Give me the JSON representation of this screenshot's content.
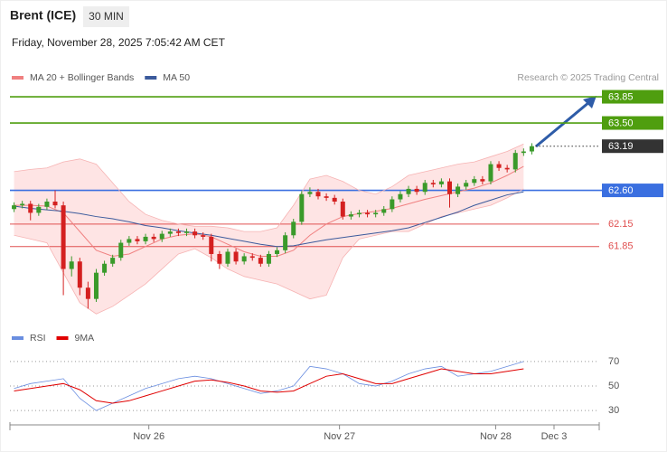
{
  "chart_data": {
    "type": "candlestick",
    "title": "Brent (ICE)",
    "timeframe": "30 MIN",
    "subtitle": "Friday, November 28, 2025 7:05:42 AM CET",
    "source": "Research © 2025 Trading Central",
    "xlim": [
      -0.5,
      71.2
    ],
    "xticks": [
      {
        "value": 16.4,
        "label": "Nov 26"
      },
      {
        "value": 39.6,
        "label": "Nov 27"
      },
      {
        "value": 58.6,
        "label": "Nov 28"
      },
      {
        "value": 65.7,
        "label": "Dec 3"
      }
    ],
    "ylim": [
      60.82,
      64.72
    ],
    "up_color": "#3a9a2a",
    "down_color": "#d42020",
    "open": [
      62.35,
      62.4,
      62.42,
      62.3,
      62.38,
      62.45,
      62.4,
      61.55,
      61.65,
      61.3,
      61.15,
      61.5,
      61.62,
      61.7,
      61.9,
      61.95,
      61.92,
      61.98,
      61.95,
      62.02,
      62.05,
      62.03,
      62.05,
      62.0,
      61.98,
      61.75,
      61.62,
      61.78,
      61.65,
      61.72,
      61.7,
      61.62,
      61.75,
      61.8,
      62.0,
      62.18,
      62.55,
      62.58,
      62.52,
      62.5,
      62.45,
      62.25,
      62.28,
      62.3,
      62.28,
      62.3,
      62.35,
      62.48,
      62.55,
      62.62,
      62.58,
      62.7,
      62.68,
      62.72,
      62.55,
      62.65,
      62.7,
      62.75,
      62.72,
      62.95,
      62.9,
      62.88,
      63.1,
      63.12
    ],
    "high": [
      62.44,
      62.46,
      62.46,
      62.42,
      62.49,
      62.6,
      62.45,
      61.72,
      61.7,
      61.38,
      61.55,
      61.66,
      61.74,
      61.94,
      61.99,
      61.99,
      62.02,
      62.02,
      62.06,
      62.09,
      62.09,
      62.09,
      62.09,
      62.04,
      62.02,
      61.79,
      61.82,
      61.82,
      61.76,
      61.76,
      61.74,
      61.79,
      61.84,
      62.04,
      62.22,
      62.59,
      62.64,
      62.62,
      62.56,
      62.54,
      62.49,
      62.32,
      62.34,
      62.34,
      62.34,
      62.39,
      62.52,
      62.59,
      62.66,
      62.66,
      62.74,
      62.74,
      62.76,
      62.76,
      62.69,
      62.74,
      62.79,
      62.79,
      62.99,
      62.99,
      62.94,
      63.14,
      63.16,
      63.23
    ],
    "low": [
      62.31,
      62.36,
      62.2,
      62.26,
      62.34,
      62.36,
      61.2,
      61.45,
      61.2,
      61.02,
      61.11,
      61.46,
      61.58,
      61.66,
      61.86,
      61.88,
      61.88,
      61.91,
      61.91,
      61.98,
      61.99,
      61.99,
      61.96,
      61.94,
      61.65,
      61.55,
      61.58,
      61.61,
      61.61,
      61.66,
      61.58,
      61.58,
      61.71,
      61.76,
      61.96,
      62.14,
      62.51,
      62.48,
      62.46,
      62.41,
      62.21,
      62.21,
      62.24,
      62.24,
      62.24,
      62.26,
      62.31,
      62.44,
      62.51,
      62.54,
      62.54,
      62.64,
      62.64,
      62.37,
      62.51,
      62.61,
      62.66,
      62.68,
      62.68,
      62.86,
      62.84,
      62.84,
      63.06,
      63.08
    ],
    "close": [
      62.4,
      62.42,
      62.3,
      62.38,
      62.45,
      62.4,
      61.55,
      61.65,
      61.3,
      61.15,
      61.5,
      61.62,
      61.7,
      61.9,
      61.95,
      61.92,
      61.98,
      61.95,
      62.02,
      62.05,
      62.03,
      62.05,
      62.0,
      61.98,
      61.75,
      61.62,
      61.78,
      61.65,
      61.72,
      61.7,
      61.62,
      61.75,
      61.8,
      62.0,
      62.18,
      62.55,
      62.58,
      62.52,
      62.5,
      62.45,
      62.25,
      62.28,
      62.3,
      62.28,
      62.3,
      62.35,
      62.48,
      62.55,
      62.62,
      62.58,
      62.7,
      62.68,
      62.72,
      62.55,
      62.65,
      62.7,
      62.75,
      62.72,
      62.95,
      62.9,
      62.88,
      63.1,
      63.12,
      63.19
    ],
    "indicators": {
      "x": [
        0,
        2,
        4,
        6,
        8,
        10,
        12,
        14,
        16,
        18,
        20,
        22,
        24,
        26,
        28,
        30,
        32,
        34,
        36,
        38,
        40,
        42,
        44,
        46,
        48,
        50,
        52,
        54,
        56,
        58,
        60,
        62
      ],
      "series": [
        {
          "name": "MA 20 + Bollinger Bands",
          "color": "#f08080",
          "band_color": "#fdd9d9",
          "values": [
            62.4,
            62.4,
            62.39,
            62.3,
            62.05,
            61.8,
            61.72,
            61.75,
            61.85,
            61.95,
            62.0,
            62.02,
            61.98,
            61.88,
            61.78,
            61.72,
            61.72,
            61.8,
            62.0,
            62.15,
            62.25,
            62.29,
            62.32,
            62.36,
            62.42,
            62.48,
            62.53,
            62.58,
            62.63,
            62.7,
            62.8,
            62.92
          ],
          "upper": [
            62.85,
            62.88,
            62.9,
            62.98,
            63.02,
            62.95,
            62.7,
            62.45,
            62.28,
            62.2,
            62.15,
            62.12,
            62.12,
            62.1,
            62.05,
            62.05,
            62.1,
            62.4,
            62.75,
            62.8,
            62.72,
            62.6,
            62.55,
            62.65,
            62.8,
            62.85,
            62.9,
            62.95,
            62.98,
            63.05,
            63.12,
            63.22
          ],
          "lower": [
            62.0,
            61.95,
            61.9,
            61.5,
            61.1,
            60.95,
            61.05,
            61.2,
            61.35,
            61.55,
            61.75,
            61.82,
            61.7,
            61.55,
            61.45,
            61.4,
            61.35,
            61.25,
            61.15,
            61.2,
            61.7,
            61.95,
            62.0,
            62.05,
            62.05,
            62.15,
            62.25,
            62.3,
            62.35,
            62.4,
            62.5,
            62.62
          ]
        },
        {
          "name": "MA 50",
          "color": "#3b5a9c",
          "values": [
            62.39,
            62.36,
            62.34,
            62.32,
            62.29,
            62.25,
            62.22,
            62.18,
            62.13,
            62.1,
            62.06,
            62.03,
            62.0,
            61.96,
            61.92,
            61.88,
            61.85,
            61.86,
            61.9,
            61.94,
            61.97,
            62.0,
            62.03,
            62.06,
            62.1,
            62.17,
            62.24,
            62.31,
            62.4,
            62.47,
            62.54,
            62.58
          ]
        }
      ]
    },
    "levels": [
      {
        "value": 63.85,
        "color": "#4f9e0f",
        "boxed": true
      },
      {
        "value": 63.5,
        "label": "63.50",
        "color": "#4f9e0f",
        "boxed": true
      },
      {
        "value": 63.19,
        "color": "#333333",
        "boxed": true,
        "dotted": true
      },
      {
        "value": 62.6,
        "label": "62.60",
        "color": "#3a6fe0",
        "boxed": true
      },
      {
        "value": 62.15,
        "color": "#e05050",
        "boxed": false
      },
      {
        "value": 61.85,
        "color": "#e05050",
        "boxed": false
      }
    ],
    "rsi": {
      "ylim": [
        22,
        81
      ],
      "yticks": [
        70,
        50,
        30
      ],
      "series": [
        {
          "name": "RSI",
          "color": "#6a8ee0",
          "values": [
            48,
            52,
            54,
            56,
            40,
            30,
            36,
            42,
            48,
            52,
            56,
            58,
            56,
            52,
            48,
            44,
            46,
            50,
            66,
            64,
            60,
            52,
            50,
            54,
            60,
            64,
            66,
            58,
            60,
            62,
            66,
            70
          ]
        },
        {
          "name": "9MA",
          "color": "#e00000",
          "values": [
            46,
            48,
            50,
            52,
            47,
            38,
            36,
            38,
            42,
            46,
            50,
            54,
            55,
            53,
            50,
            46,
            45,
            46,
            52,
            58,
            60,
            56,
            52,
            52,
            56,
            60,
            64,
            62,
            60,
            60,
            62,
            64
          ]
        }
      ]
    }
  }
}
